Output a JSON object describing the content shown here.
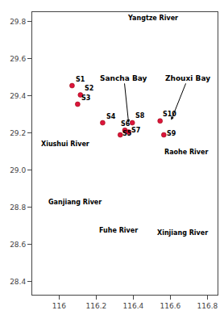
{
  "chart_data": {
    "type": "scatter",
    "x": [
      116.07,
      116.115,
      116.1,
      116.235,
      116.33,
      116.355,
      116.375,
      116.395,
      116.565,
      116.545
    ],
    "values": [
      29.455,
      29.405,
      29.355,
      29.255,
      29.19,
      29.215,
      29.205,
      29.255,
      29.19,
      29.265
    ],
    "color": "#dc143c",
    "marker": "circle",
    "grid": false,
    "xlim": [
      115.855,
      116.855
    ],
    "ylim": [
      28.33,
      29.85
    ],
    "xticks": [
      116,
      116.2,
      116.4,
      116.6,
      116.8
    ],
    "yticks": [
      28.4,
      28.6,
      28.8,
      {
        "value": 29.0,
        "label": "29.0"
      },
      29.2,
      29.4,
      29.6,
      29.8
    ],
    "annotations": [
      {
        "text": "S1",
        "x": 116.082,
        "y": 29.46
      },
      {
        "text": "S2",
        "x": 116.127,
        "y": 29.41
      },
      {
        "text": "S3",
        "x": 116.112,
        "y": 29.36
      },
      {
        "text": "S4",
        "x": 116.247,
        "y": 29.26
      },
      {
        "text": "S5",
        "x": 116.335,
        "y": 29.17
      },
      {
        "text": "S6",
        "x": 116.325,
        "y": 29.22
      },
      {
        "text": "S7",
        "x": 116.383,
        "y": 29.185
      },
      {
        "text": "S8",
        "x": 116.403,
        "y": 29.263
      },
      {
        "text": "S9",
        "x": 116.573,
        "y": 29.17
      },
      {
        "text": "S10",
        "x": 116.55,
        "y": 29.273
      },
      {
        "text": "Sancha Bay",
        "x": 116.375,
        "y": 29.255,
        "ax": 116.35,
        "ay": 29.495
      },
      {
        "text": "Zhouxi Bay",
        "x": 116.605,
        "y": 29.27,
        "ax": 116.695,
        "ay": 29.495
      },
      {
        "text": "Yangtze River",
        "x": 116.36,
        "y": 29.79
      },
      {
        "text": "Xiushui River",
        "x": 115.895,
        "y": 29.11
      },
      {
        "text": "Ganjiang River",
        "x": 115.935,
        "y": 28.8
      },
      {
        "text": "Fuhe River",
        "x": 116.205,
        "y": 28.645
      },
      {
        "text": "Xinjiang River",
        "x": 116.52,
        "y": 28.635
      },
      {
        "text": "Raohe River",
        "x": 116.815,
        "y": 29.07
      }
    ]
  }
}
